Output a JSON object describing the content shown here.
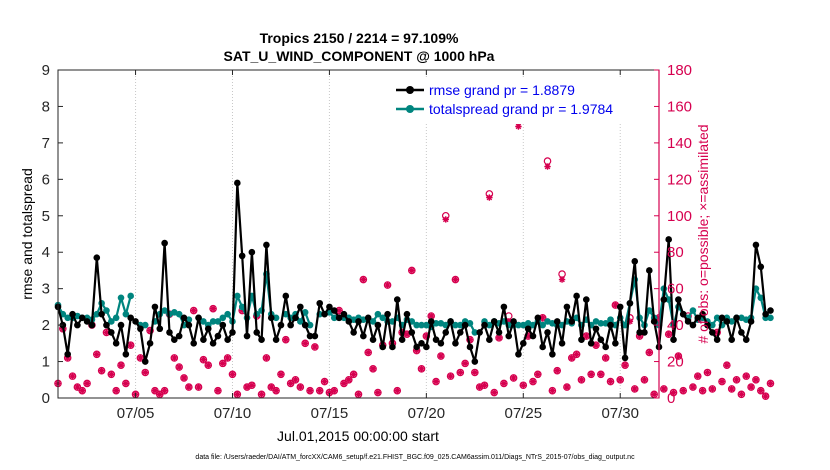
{
  "chart_data": {
    "type": "line",
    "title_line1": "Tropics 2150 / 2214 = 97.109%",
    "title_line2": "SAT_U_WIND_COMPONENT @ 1000 hPa",
    "xlabel": "Jul.01,2015 00:00:00 start",
    "ylabel_left": "rmse and totalspread",
    "ylabel_right": "# of obs: o=possible; ×=assimilated",
    "footnote": "data file: /Users/raeder/DAI/ATM_forcXX/CAM6_setup/f.e21.FHIST_BGC.f09_025.CAM6assim.011/Diags_NTrS_2015-07/obs_diag_output.nc",
    "xlim": [
      1,
      32
    ],
    "ylim_left": [
      0,
      9
    ],
    "ylim_right": [
      0,
      180
    ],
    "x_ticks": [
      5,
      10,
      15,
      20,
      25,
      30
    ],
    "x_tick_labels": [
      "07/05",
      "07/10",
      "07/15",
      "07/20",
      "07/25",
      "07/30"
    ],
    "y_left_ticks": [
      "0",
      "1",
      "2",
      "3",
      "4",
      "5",
      "6",
      "7",
      "8",
      "9"
    ],
    "y_right_ticks": [
      "0",
      "20",
      "40",
      "60",
      "80",
      "100",
      "120",
      "140",
      "160",
      "180"
    ],
    "legend": {
      "rmse": "rmse grand pr = 1.8879",
      "spread": "totalspread grand pr = 1.9784",
      "placement": "top-right"
    },
    "colors": {
      "rmse": "#000000",
      "spread": "#00857f",
      "obs": "#d6004f"
    },
    "day_start": 1,
    "step": 0.25,
    "rmse": [
      2.5,
      2.0,
      1.2,
      2.3,
      2.0,
      2.2,
      2.1,
      2.0,
      3.85,
      2.3,
      2.0,
      1.8,
      1.5,
      2.0,
      1.2,
      2.2,
      2.1,
      1.9,
      1.0,
      1.5,
      2.5,
      1.9,
      4.25,
      1.8,
      1.6,
      1.7,
      2.2,
      2.0,
      1.5,
      2.2,
      1.6,
      1.9,
      1.5,
      1.7,
      2.0,
      1.6,
      1.8,
      5.9,
      3.9,
      1.7,
      4.0,
      1.8,
      1.6,
      4.2,
      2.2,
      1.6,
      2.0,
      2.8,
      2.0,
      2.2,
      2.5,
      2.0,
      1.7,
      1.7,
      2.6,
      2.3,
      2.5,
      2.4,
      2.2,
      2.3,
      2.1,
      1.8,
      2.1,
      1.7,
      2.2,
      1.6,
      2.0,
      1.4,
      2.3,
      1.4,
      2.7,
      1.6,
      2.3,
      1.8,
      1.4,
      1.5,
      1.4,
      2.1,
      1.6,
      1.5,
      1.8,
      2.1,
      1.5,
      1.8,
      2.0,
      1.4,
      1.0,
      1.8,
      2.0,
      1.6,
      2.1,
      1.8,
      2.5,
      1.7,
      2.1,
      1.2,
      1.5,
      1.9,
      1.7,
      2.2,
      1.4,
      1.8,
      1.2,
      2.1,
      1.5,
      2.5,
      2.1,
      2.8,
      1.6,
      2.7,
      1.5,
      1.9,
      1.6,
      1.4,
      2.0,
      1.5,
      2.5,
      1.1,
      2.6,
      3.75,
      1.8,
      1.8,
      3.5,
      2.1,
      1.4,
      2.7,
      4.35,
      1.6,
      2.7,
      2.3,
      2.1,
      2.0,
      2.2,
      2.3,
      2.0,
      1.8,
      1.6,
      2.2,
      2.1,
      1.6,
      2.2,
      1.8,
      1.6,
      2.1,
      4.2,
      3.6,
      2.3,
      2.4
    ],
    "spread": [
      2.55,
      2.3,
      2.2,
      2.2,
      2.25,
      2.2,
      2.2,
      2.15,
      2.3,
      2.6,
      2.4,
      2.1,
      2.2,
      2.75,
      2.3,
      2.8,
      null,
      2.0,
      2.0,
      null,
      2.1,
      2.3,
      2.4,
      2.3,
      2.35,
      2.3,
      2.0,
      2.15,
      null,
      2.2,
      2.1,
      2.0,
      2.1,
      2.1,
      2.2,
      2.3,
      2.1,
      2.8,
      2.5,
      2.2,
      2.8,
      2.3,
      2.4,
      3.4,
      2.3,
      2.2,
      null,
      2.3,
      2.2,
      2.3,
      2.1,
      2.35,
      2.0,
      null,
      2.3,
      null,
      2.35,
      2.2,
      2.2,
      2.2,
      2.2,
      2.15,
      2.2,
      2.15,
      2.15,
      2.1,
      2.3,
      2.2,
      2.1,
      2.1,
      2.2,
      2.0,
      2.15,
      2.1,
      2.0,
      2.0,
      2.0,
      1.95,
      2.05,
      2.05,
      2.0,
      2.1,
      2.0,
      2.0,
      2.1,
      2.05,
      1.8,
      null,
      2.1,
      2.0,
      2.1,
      2.05,
      2.1,
      2.0,
      2.0,
      2.0,
      2.0,
      2.05,
      2.0,
      2.1,
      2.0,
      2.1,
      2.05,
      2.0,
      2.0,
      2.1,
      2.05,
      2.2,
      2.0,
      2.15,
      2.0,
      2.1,
      2.05,
      2.05,
      2.15,
      2.0,
      2.2,
      2.0,
      2.6,
      3.25,
      2.2,
      2.0,
      2.4,
      2.2,
      2.0,
      3.0,
      2.7,
      2.0,
      2.5,
      2.3,
      2.2,
      2.4,
      2.15,
      2.2,
      2.1,
      2.0,
      2.2,
      2.0,
      2.2,
      2.1,
      2.2,
      2.2,
      2.15,
      2.2,
      3.0,
      2.75,
      2.2,
      2.2
    ],
    "obs_possible": [
      8,
      38,
      22,
      12,
      6,
      4,
      8,
      40,
      24,
      15,
      36,
      13,
      4,
      18,
      8,
      29,
      2,
      22,
      14,
      37,
      4,
      2,
      4,
      46,
      22,
      17,
      11,
      6,
      48,
      6,
      21,
      18,
      49,
      4,
      19,
      22,
      13,
      2,
      48,
      6,
      7,
      45,
      2,
      22,
      6,
      4,
      13,
      32,
      8,
      10,
      6,
      30,
      4,
      28,
      4,
      9,
      3,
      4,
      48,
      8,
      10,
      13,
      2,
      65,
      25,
      16,
      3,
      29,
      62,
      30,
      4,
      36,
      35,
      70,
      26,
      16,
      34,
      45,
      9,
      23,
      100,
      12,
      65,
      14,
      19,
      32,
      14,
      6,
      7,
      112,
      3,
      33,
      8,
      45,
      11,
      152,
      7,
      34,
      9,
      13,
      44,
      130,
      4,
      15,
      68,
      6,
      22,
      24,
      10,
      34,
      13,
      29,
      13,
      22,
      9,
      51,
      10,
      18,
      44,
      5,
      34,
      10,
      25,
      2,
      44,
      5,
      35,
      3,
      23,
      4,
      45,
      6,
      12,
      4,
      14,
      5,
      36,
      9,
      18,
      5,
      10,
      2,
      12,
      6,
      10,
      4,
      1,
      8
    ],
    "obs_assimilated": [
      8,
      38,
      22,
      12,
      6,
      4,
      8,
      40,
      24,
      15,
      36,
      13,
      4,
      18,
      8,
      29,
      2,
      22,
      14,
      37,
      4,
      2,
      4,
      46,
      22,
      17,
      11,
      6,
      48,
      6,
      21,
      18,
      49,
      4,
      19,
      22,
      13,
      2,
      48,
      6,
      7,
      45,
      2,
      22,
      6,
      4,
      13,
      32,
      8,
      10,
      6,
      30,
      4,
      28,
      4,
      9,
      3,
      4,
      48,
      8,
      10,
      13,
      2,
      65,
      25,
      16,
      3,
      29,
      62,
      30,
      4,
      36,
      35,
      70,
      26,
      16,
      34,
      45,
      9,
      23,
      98,
      12,
      65,
      14,
      19,
      32,
      14,
      6,
      7,
      110,
      3,
      33,
      8,
      42,
      11,
      149,
      7,
      34,
      9,
      13,
      44,
      127,
      4,
      15,
      65,
      6,
      22,
      24,
      10,
      34,
      13,
      29,
      13,
      22,
      9,
      51,
      10,
      18,
      42,
      5,
      34,
      10,
      25,
      2,
      44,
      5,
      35,
      3,
      23,
      4,
      43,
      6,
      12,
      4,
      14,
      5,
      36,
      9,
      18,
      5,
      10,
      2,
      12,
      6,
      10,
      4,
      1,
      8
    ]
  }
}
